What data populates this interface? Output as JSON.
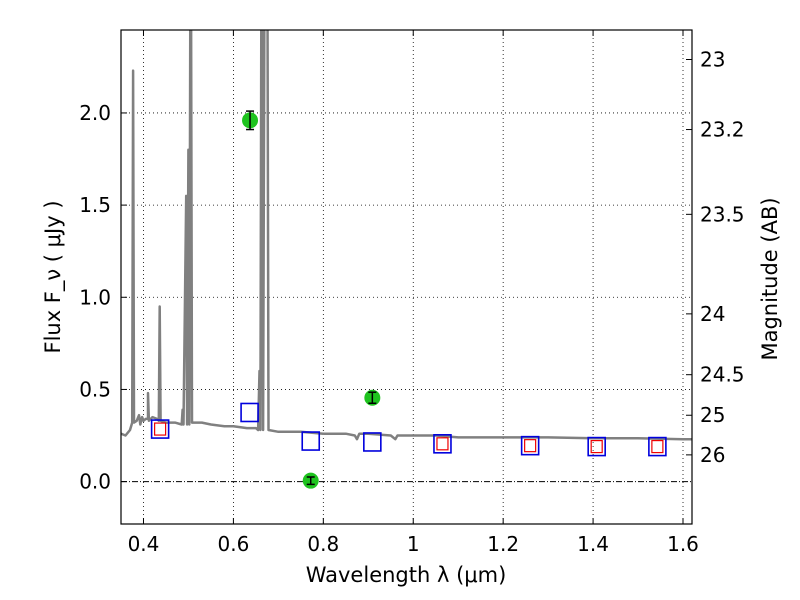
{
  "chart_data": {
    "type": "scatter",
    "title": "",
    "xlabel": "Wavelength  λ (μm)",
    "ylabel": "Flux  F_ν  ( μJy )",
    "ylabel_right": "Magnitude (AB)",
    "xlim": [
      0.35,
      1.62
    ],
    "ylim": [
      -0.23,
      2.45
    ],
    "grid": true,
    "x_ticks": [
      0.4,
      0.6,
      0.8,
      1.0,
      1.2,
      1.4,
      1.6
    ],
    "x_tick_labels": [
      "0.4",
      "0.6",
      "0.8",
      "1",
      "1.2",
      "1.4",
      "1.6"
    ],
    "y_ticks": [
      0.0,
      0.5,
      1.0,
      1.5,
      2.0
    ],
    "y_tick_labels": [
      "0.0",
      "0.5",
      "1.0",
      "1.5",
      "2.0"
    ],
    "right_ticks": [
      {
        "label": "23",
        "flux": 2.29
      },
      {
        "label": "23.2",
        "flux": 1.91
      },
      {
        "label": "23.5",
        "flux": 1.45
      },
      {
        "label": "24",
        "flux": 0.91
      },
      {
        "label": "24.5",
        "flux": 0.58
      },
      {
        "label": "25",
        "flux": 0.36
      },
      {
        "label": "26",
        "flux": 0.145
      }
    ],
    "colors": {
      "model": "#808080",
      "observed": "#1ec31e",
      "model_box": "#0000dd",
      "red_box": "#ee0000"
    },
    "model_spectrum": [
      [
        0.35,
        0.26
      ],
      [
        0.36,
        0.25
      ],
      [
        0.37,
        0.28
      ],
      [
        0.375,
        0.32
      ],
      [
        0.377,
        2.23
      ],
      [
        0.379,
        0.32
      ],
      [
        0.385,
        0.33
      ],
      [
        0.39,
        0.36
      ],
      [
        0.393,
        0.31
      ],
      [
        0.397,
        0.35
      ],
      [
        0.4,
        0.33
      ],
      [
        0.405,
        0.34
      ],
      [
        0.41,
        0.34
      ],
      [
        0.41,
        0.48
      ],
      [
        0.412,
        0.33
      ],
      [
        0.42,
        0.35
      ],
      [
        0.43,
        0.34
      ],
      [
        0.434,
        0.33
      ],
      [
        0.436,
        0.95
      ],
      [
        0.438,
        0.33
      ],
      [
        0.45,
        0.32
      ],
      [
        0.46,
        0.32
      ],
      [
        0.47,
        0.32
      ],
      [
        0.485,
        0.31
      ],
      [
        0.487,
        0.39
      ],
      [
        0.489,
        0.31
      ],
      [
        0.495,
        1.55
      ],
      [
        0.497,
        0.31
      ],
      [
        0.5,
        1.8
      ],
      [
        0.502,
        0.31
      ],
      [
        0.505,
        3.5
      ],
      [
        0.508,
        0.32
      ],
      [
        0.53,
        0.32
      ],
      [
        0.55,
        0.31
      ],
      [
        0.58,
        0.3
      ],
      [
        0.6,
        0.3
      ],
      [
        0.63,
        0.29
      ],
      [
        0.65,
        0.29
      ],
      [
        0.655,
        0.28
      ],
      [
        0.658,
        0.6
      ],
      [
        0.66,
        0.28
      ],
      [
        0.663,
        3.5
      ],
      [
        0.666,
        0.28
      ],
      [
        0.67,
        3.5
      ],
      [
        0.675,
        3.5
      ],
      [
        0.678,
        0.28
      ],
      [
        0.7,
        0.27
      ],
      [
        0.75,
        0.27
      ],
      [
        0.8,
        0.26
      ],
      [
        0.85,
        0.26
      ],
      [
        0.87,
        0.25
      ],
      [
        0.875,
        0.23
      ],
      [
        0.88,
        0.26
      ],
      [
        0.9,
        0.26
      ],
      [
        0.95,
        0.25
      ],
      [
        0.96,
        0.23
      ],
      [
        0.965,
        0.25
      ],
      [
        1.0,
        0.25
      ],
      [
        1.05,
        0.25
      ],
      [
        1.1,
        0.24
      ],
      [
        1.2,
        0.24
      ],
      [
        1.3,
        0.24
      ],
      [
        1.4,
        0.235
      ],
      [
        1.5,
        0.235
      ],
      [
        1.6,
        0.23
      ],
      [
        1.62,
        0.23
      ]
    ],
    "observed_points": [
      {
        "x": 0.637,
        "y": 1.96,
        "yerr": 0.05
      },
      {
        "x": 0.772,
        "y": 0.005,
        "yerr": 0.02
      },
      {
        "x": 0.909,
        "y": 0.455,
        "yerr": 0.03
      }
    ],
    "model_photometry": [
      {
        "x": 0.437,
        "y": 0.285
      },
      {
        "x": 0.636,
        "y": 0.375
      },
      {
        "x": 0.772,
        "y": 0.22
      },
      {
        "x": 0.909,
        "y": 0.215
      },
      {
        "x": 1.065,
        "y": 0.205
      },
      {
        "x": 1.26,
        "y": 0.195
      },
      {
        "x": 1.408,
        "y": 0.19
      },
      {
        "x": 1.543,
        "y": 0.19
      }
    ],
    "red_squares": [
      {
        "x": 0.437,
        "y": 0.285
      },
      {
        "x": 1.065,
        "y": 0.205
      },
      {
        "x": 1.26,
        "y": 0.195
      },
      {
        "x": 1.408,
        "y": 0.19
      },
      {
        "x": 1.543,
        "y": 0.19
      }
    ]
  }
}
